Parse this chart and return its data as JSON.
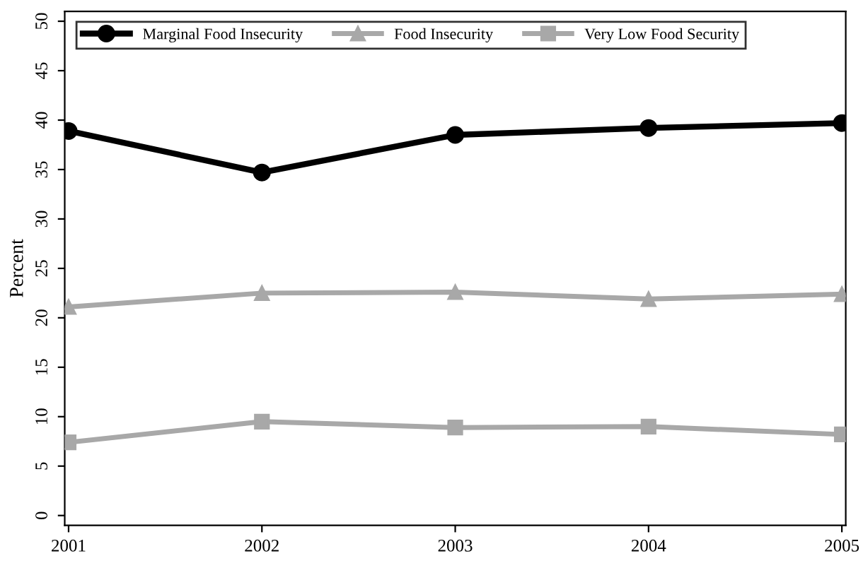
{
  "chart_data": {
    "type": "line",
    "ylabel": "Percent",
    "x": [
      2001,
      2002,
      2003,
      2004,
      2005
    ],
    "xlim": [
      2000.98,
      2005.02
    ],
    "xticks": [
      2001,
      2002,
      2003,
      2004,
      2005
    ],
    "ylim": [
      -1,
      51
    ],
    "yticks": [
      0,
      5,
      10,
      15,
      20,
      25,
      30,
      35,
      40,
      45,
      50
    ],
    "grid": false,
    "legend": "top",
    "series": [
      {
        "name": "Marginal Food Insecurity",
        "color": "#000000",
        "marker": "circle",
        "values": [
          38.9,
          34.7,
          38.5,
          39.2,
          39.7
        ]
      },
      {
        "name": "Food Insecurity",
        "color": "#a8a8a8",
        "marker": "triangle",
        "values": [
          21.1,
          22.5,
          22.6,
          21.9,
          22.4
        ]
      },
      {
        "name": "Very Low Food Security",
        "color": "#a8a8a8",
        "marker": "square",
        "values": [
          7.4,
          9.5,
          8.9,
          9.0,
          8.2
        ]
      }
    ]
  }
}
